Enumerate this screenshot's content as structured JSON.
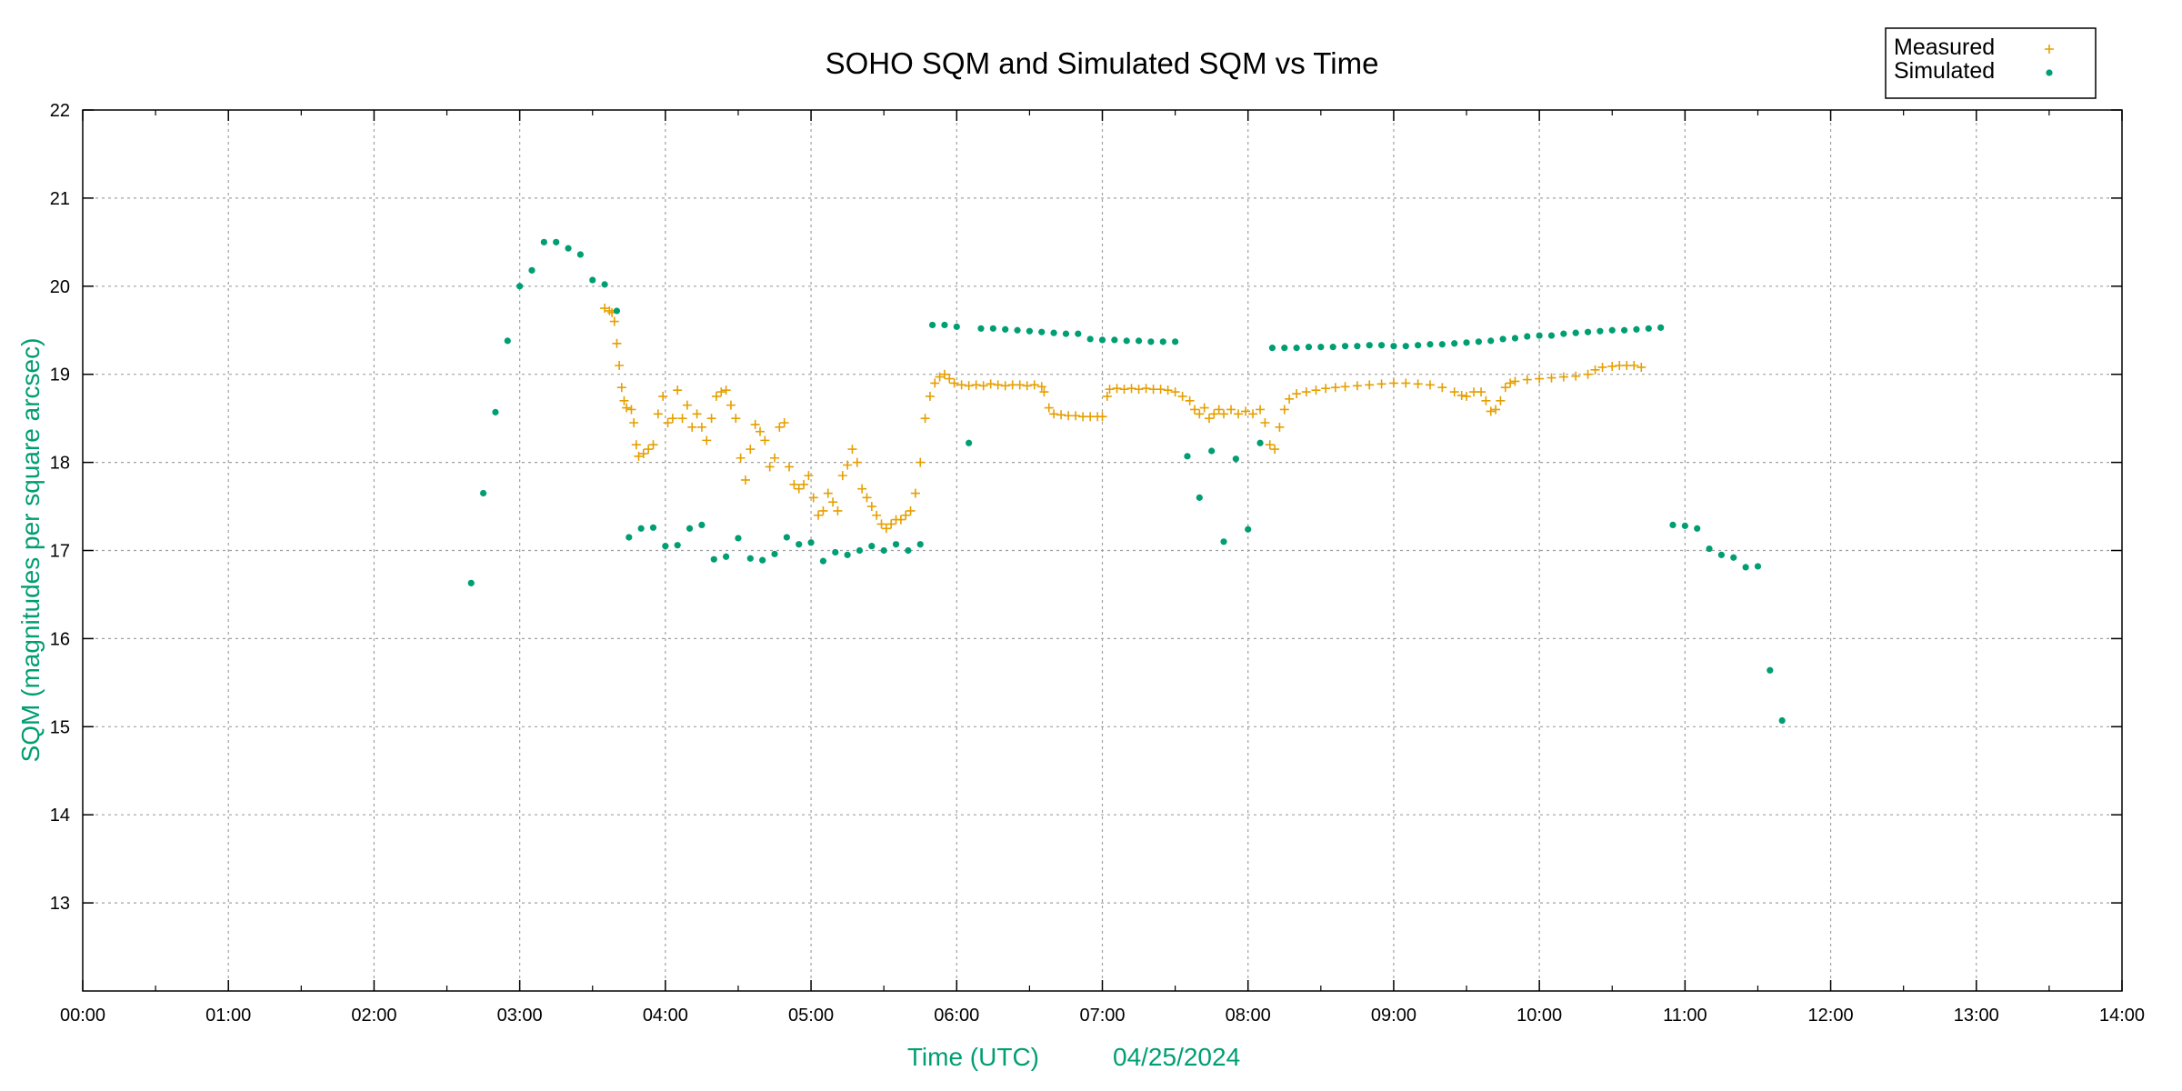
{
  "chart_data": {
    "type": "scatter",
    "title": "SOHO SQM and Simulated SQM vs Time",
    "xlabel": "Time (UTC)",
    "xlabel_date": "04/25/2024",
    "ylabel": "SQM (magnitudes per square arcsec)",
    "xlim": [
      "00:00",
      "14:00"
    ],
    "ylim": [
      12,
      22
    ],
    "x_ticks": [
      "00:00",
      "01:00",
      "02:00",
      "03:00",
      "04:00",
      "05:00",
      "06:00",
      "07:00",
      "08:00",
      "09:00",
      "10:00",
      "11:00",
      "12:00",
      "13:00",
      "14:00"
    ],
    "y_ticks": [
      13,
      14,
      15,
      16,
      17,
      18,
      19,
      20,
      21,
      22
    ],
    "grid": true,
    "legend_placement": "top-right",
    "colors": {
      "measured": "#E69F00",
      "simulated": "#009E73",
      "axis_label": "#009E73"
    },
    "series": [
      {
        "name": "Measured",
        "marker": "plus",
        "x": [
          "03:35",
          "03:37",
          "03:38",
          "03:39",
          "03:40",
          "03:41",
          "03:42",
          "03:43",
          "03:44",
          "03:46",
          "03:47",
          "03:48",
          "03:49",
          "03:51",
          "03:53",
          "03:55",
          "03:57",
          "03:59",
          "04:01",
          "04:03",
          "04:05",
          "04:07",
          "04:09",
          "04:11",
          "04:13",
          "04:15",
          "04:17",
          "04:19",
          "04:21",
          "04:23",
          "04:25",
          "04:27",
          "04:29",
          "04:31",
          "04:33",
          "04:35",
          "04:37",
          "04:39",
          "04:41",
          "04:43",
          "04:45",
          "04:47",
          "04:49",
          "04:51",
          "04:53",
          "04:55",
          "04:57",
          "04:59",
          "05:01",
          "05:03",
          "05:05",
          "05:07",
          "05:09",
          "05:11",
          "05:13",
          "05:15",
          "05:17",
          "05:19",
          "05:21",
          "05:23",
          "05:25",
          "05:27",
          "05:29",
          "05:31",
          "05:33",
          "05:35",
          "05:37",
          "05:39",
          "05:41",
          "05:43",
          "05:45",
          "05:47",
          "05:49",
          "05:51",
          "05:53",
          "05:55",
          "05:57",
          "05:59",
          "06:02",
          "06:05",
          "06:08",
          "06:11",
          "06:14",
          "06:17",
          "06:20",
          "06:23",
          "06:26",
          "06:29",
          "06:32",
          "06:35",
          "06:36",
          "06:38",
          "06:40",
          "06:43",
          "06:46",
          "06:49",
          "06:52",
          "06:55",
          "06:58",
          "07:00",
          "07:02",
          "07:03",
          "07:06",
          "07:09",
          "07:12",
          "07:15",
          "07:18",
          "07:21",
          "07:24",
          "07:27",
          "07:30",
          "07:33",
          "07:36",
          "07:38",
          "07:40",
          "07:42",
          "07:44",
          "07:46",
          "07:48",
          "07:50",
          "07:53",
          "07:56",
          "07:59",
          "08:02",
          "08:05",
          "08:07",
          "08:09",
          "08:11",
          "08:13",
          "08:15",
          "08:17",
          "08:20",
          "08:24",
          "08:28",
          "08:32",
          "08:36",
          "08:40",
          "08:45",
          "08:50",
          "08:55",
          "09:00",
          "09:05",
          "09:10",
          "09:15",
          "09:20",
          "09:25",
          "09:28",
          "09:30",
          "09:33",
          "09:36",
          "09:38",
          "09:40",
          "09:42",
          "09:44",
          "09:46",
          "09:48",
          "09:50",
          "09:55",
          "10:00",
          "10:05",
          "10:10",
          "10:15",
          "10:20",
          "10:23",
          "10:26",
          "10:30",
          "10:33",
          "10:36",
          "10:39",
          "10:42"
        ],
        "y": [
          19.75,
          19.72,
          19.7,
          19.6,
          19.35,
          19.1,
          18.85,
          18.7,
          18.62,
          18.6,
          18.45,
          18.2,
          18.07,
          18.1,
          18.15,
          18.2,
          18.55,
          18.75,
          18.45,
          18.5,
          18.82,
          18.5,
          18.65,
          18.4,
          18.55,
          18.4,
          18.25,
          18.5,
          18.75,
          18.8,
          18.82,
          18.65,
          18.5,
          18.05,
          17.8,
          18.15,
          18.43,
          18.35,
          18.25,
          17.95,
          18.05,
          18.4,
          18.45,
          17.95,
          17.75,
          17.7,
          17.75,
          17.85,
          17.6,
          17.4,
          17.45,
          17.65,
          17.55,
          17.45,
          17.85,
          17.97,
          18.15,
          18.0,
          17.7,
          17.6,
          17.5,
          17.4,
          17.3,
          17.25,
          17.3,
          17.35,
          17.35,
          17.4,
          17.45,
          17.65,
          18.0,
          18.5,
          18.75,
          18.9,
          18.97,
          19.0,
          18.95,
          18.9,
          18.88,
          18.87,
          18.88,
          18.87,
          18.89,
          18.88,
          18.87,
          18.88,
          18.88,
          18.87,
          18.88,
          18.86,
          18.8,
          18.62,
          18.55,
          18.54,
          18.53,
          18.53,
          18.52,
          18.52,
          18.52,
          18.52,
          18.75,
          18.83,
          18.84,
          18.83,
          18.84,
          18.83,
          18.84,
          18.83,
          18.83,
          18.82,
          18.8,
          18.75,
          18.7,
          18.6,
          18.55,
          18.62,
          18.5,
          18.55,
          18.6,
          18.55,
          18.6,
          18.55,
          18.58,
          18.55,
          18.6,
          18.45,
          18.2,
          18.15,
          18.4,
          18.6,
          18.72,
          18.78,
          18.8,
          18.82,
          18.84,
          18.85,
          18.86,
          18.87,
          18.88,
          18.89,
          18.9,
          18.9,
          18.89,
          18.88,
          18.85,
          18.8,
          18.76,
          18.75,
          18.8,
          18.8,
          18.7,
          18.58,
          18.6,
          18.7,
          18.85,
          18.9,
          18.92,
          18.94,
          18.95,
          18.96,
          18.97,
          18.98,
          19.0,
          19.05,
          19.08,
          19.09,
          19.1,
          19.1,
          19.1,
          19.08
        ]
      },
      {
        "name": "Simulated",
        "marker": "dot",
        "x": [
          "02:40",
          "02:45",
          "02:50",
          "02:55",
          "03:00",
          "03:05",
          "03:10",
          "03:15",
          "03:20",
          "03:25",
          "03:30",
          "03:35",
          "03:40",
          "03:45",
          "03:50",
          "03:55",
          "04:00",
          "04:05",
          "04:10",
          "04:15",
          "04:20",
          "04:25",
          "04:30",
          "04:35",
          "04:40",
          "04:45",
          "04:50",
          "04:55",
          "05:00",
          "05:05",
          "05:10",
          "05:15",
          "05:20",
          "05:25",
          "05:30",
          "05:35",
          "05:40",
          "05:45",
          "05:50",
          "05:55",
          "06:00",
          "06:05",
          "06:10",
          "06:15",
          "06:20",
          "06:25",
          "06:30",
          "06:35",
          "06:40",
          "06:45",
          "06:50",
          "06:55",
          "07:00",
          "07:05",
          "07:10",
          "07:15",
          "07:20",
          "07:25",
          "07:30",
          "07:35",
          "07:40",
          "07:45",
          "07:50",
          "07:55",
          "08:00",
          "08:05",
          "08:10",
          "08:15",
          "08:20",
          "08:25",
          "08:30",
          "08:35",
          "08:40",
          "08:45",
          "08:50",
          "08:55",
          "09:00",
          "09:05",
          "09:10",
          "09:15",
          "09:20",
          "09:25",
          "09:30",
          "09:35",
          "09:40",
          "09:45",
          "09:50",
          "09:55",
          "10:00",
          "10:05",
          "10:10",
          "10:15",
          "10:20",
          "10:25",
          "10:30",
          "10:35",
          "10:40",
          "10:45",
          "10:50",
          "10:55",
          "11:00",
          "11:05",
          "11:10",
          "11:15",
          "11:20",
          "11:25",
          "11:30",
          "11:35",
          "11:40"
        ],
        "y": [
          16.63,
          17.65,
          18.57,
          19.38,
          20.0,
          20.18,
          20.5,
          20.5,
          20.43,
          20.36,
          20.07,
          20.02,
          19.72,
          17.15,
          17.25,
          17.26,
          17.05,
          17.06,
          17.25,
          17.29,
          16.9,
          16.93,
          17.14,
          16.91,
          16.89,
          16.96,
          17.15,
          17.07,
          17.09,
          16.88,
          16.98,
          16.95,
          17.0,
          17.05,
          17.0,
          17.07,
          17.0,
          17.07,
          19.56,
          19.56,
          19.54,
          18.22,
          19.52,
          19.52,
          19.51,
          19.5,
          19.49,
          19.48,
          19.47,
          19.46,
          19.46,
          19.4,
          19.39,
          19.39,
          19.38,
          19.38,
          19.37,
          19.37,
          19.37,
          18.07,
          17.6,
          18.13,
          17.1,
          18.04,
          17.24,
          18.22,
          19.3,
          19.3,
          19.3,
          19.31,
          19.31,
          19.31,
          19.32,
          19.32,
          19.33,
          19.33,
          19.32,
          19.32,
          19.33,
          19.34,
          19.34,
          19.35,
          19.36,
          19.37,
          19.38,
          19.4,
          19.41,
          19.43,
          19.44,
          19.44,
          19.46,
          19.47,
          19.48,
          19.49,
          19.5,
          19.5,
          19.51,
          19.52,
          19.53,
          17.29,
          17.28,
          17.25,
          17.02,
          16.95,
          16.92,
          16.81,
          16.82,
          15.64,
          15.07
        ]
      }
    ]
  }
}
